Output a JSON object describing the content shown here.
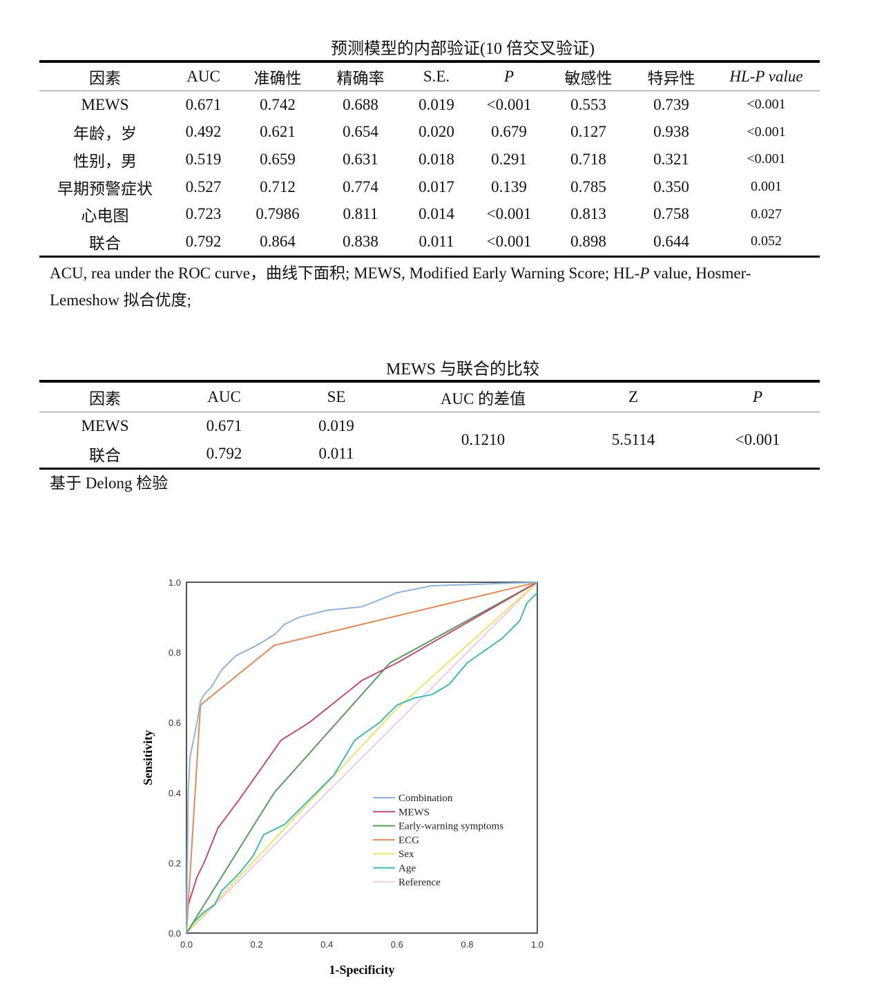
{
  "table1": {
    "title": "预测模型的内部验证(10 倍交叉验证)",
    "headers": [
      "因素",
      "AUC",
      "准确性",
      "精确率",
      "S.E.",
      "P",
      "敏感性",
      "特异性",
      "HL-P value"
    ],
    "rows": [
      [
        "MEWS",
        "0.671",
        "0.742",
        "0.688",
        "0.019",
        "<0.001",
        "0.553",
        "0.739",
        "<0.001"
      ],
      [
        "年龄，岁",
        "0.492",
        "0.621",
        "0.654",
        "0.020",
        "0.679",
        "0.127",
        "0.938",
        "<0.001"
      ],
      [
        "性别，男",
        "0.519",
        "0.659",
        "0.631",
        "0.018",
        "0.291",
        "0.718",
        "0.321",
        "<0.001"
      ],
      [
        "早期预警症状",
        "0.527",
        "0.712",
        "0.774",
        "0.017",
        "0.139",
        "0.785",
        "0.350",
        "0.001"
      ],
      [
        "心电图",
        "0.723",
        "0.7986",
        "0.811",
        "0.014",
        "<0.001",
        "0.813",
        "0.758",
        "0.027"
      ],
      [
        "联合",
        "0.792",
        "0.864",
        "0.838",
        "0.011",
        "<0.001",
        "0.898",
        "0.644",
        "0.052"
      ]
    ],
    "note_a": "ACU, rea under the ROC curve，曲线下面积; MEWS, Modified Early Warning Score; HL-",
    "note_p": "P",
    "note_b": " value, Hosmer-",
    "note_c": "Lemeshow 拟合优度;"
  },
  "table2": {
    "title": "MEWS 与联合的比较",
    "headers": [
      "因素",
      "AUC",
      "SE",
      "AUC 的差值",
      "Z",
      "P"
    ],
    "rows": [
      [
        "MEWS",
        "0.671",
        "0.019"
      ],
      [
        "联合",
        "0.792",
        "0.011"
      ]
    ],
    "diff": "0.1210",
    "z": "5.5114",
    "p": "<0.001",
    "note": "基于 Delong 检验"
  },
  "chart_data": {
    "type": "line",
    "xlabel": "1-Specificity",
    "ylabel": "Sensitivity",
    "xlim": [
      0,
      1
    ],
    "ylim": [
      0,
      1
    ],
    "xticks": [
      "0.0",
      "0.2",
      "0.4",
      "0.6",
      "0.8",
      "1.0"
    ],
    "yticks": [
      "0.0",
      "0.2",
      "0.4",
      "0.6",
      "0.8",
      "1.0"
    ],
    "legend_position": "bottom-right",
    "grid": false,
    "series": [
      {
        "name": "Combination",
        "color": "#8fb4d9",
        "points": [
          [
            0,
            0
          ],
          [
            0.005,
            0.4
          ],
          [
            0.01,
            0.5
          ],
          [
            0.02,
            0.55
          ],
          [
            0.03,
            0.6
          ],
          [
            0.04,
            0.66
          ],
          [
            0.05,
            0.68
          ],
          [
            0.07,
            0.7
          ],
          [
            0.1,
            0.75
          ],
          [
            0.14,
            0.79
          ],
          [
            0.2,
            0.82
          ],
          [
            0.25,
            0.85
          ],
          [
            0.28,
            0.88
          ],
          [
            0.32,
            0.9
          ],
          [
            0.4,
            0.92
          ],
          [
            0.5,
            0.93
          ],
          [
            0.55,
            0.95
          ],
          [
            0.6,
            0.97
          ],
          [
            0.7,
            0.99
          ],
          [
            1,
            1
          ]
        ]
      },
      {
        "name": "MEWS",
        "color": "#c04a74",
        "points": [
          [
            0,
            0
          ],
          [
            0.005,
            0.08
          ],
          [
            0.03,
            0.16
          ],
          [
            0.05,
            0.2
          ],
          [
            0.09,
            0.3
          ],
          [
            0.15,
            0.38
          ],
          [
            0.27,
            0.55
          ],
          [
            0.35,
            0.6
          ],
          [
            0.5,
            0.72
          ],
          [
            0.6,
            0.77
          ],
          [
            1,
            1
          ]
        ]
      },
      {
        "name": "Early-warning symptoms",
        "color": "#5a9a5a",
        "points": [
          [
            0,
            0
          ],
          [
            0.25,
            0.4
          ],
          [
            0.58,
            0.77
          ],
          [
            1,
            1
          ]
        ]
      },
      {
        "name": "ECG",
        "color": "#e08a5a",
        "points": [
          [
            0,
            0
          ],
          [
            0.04,
            0.65
          ],
          [
            0.25,
            0.82
          ],
          [
            1,
            1
          ]
        ]
      },
      {
        "name": "Sex",
        "color": "#e6e66a",
        "points": [
          [
            0,
            0
          ],
          [
            0.6,
            0.64
          ],
          [
            1,
            1
          ]
        ]
      },
      {
        "name": "Age",
        "color": "#40b8b0",
        "points": [
          [
            0,
            0
          ],
          [
            0.02,
            0.03
          ],
          [
            0.05,
            0.06
          ],
          [
            0.08,
            0.08
          ],
          [
            0.1,
            0.12
          ],
          [
            0.15,
            0.17
          ],
          [
            0.19,
            0.22
          ],
          [
            0.22,
            0.28
          ],
          [
            0.28,
            0.31
          ],
          [
            0.35,
            0.38
          ],
          [
            0.42,
            0.45
          ],
          [
            0.48,
            0.55
          ],
          [
            0.55,
            0.6
          ],
          [
            0.6,
            0.65
          ],
          [
            0.65,
            0.67
          ],
          [
            0.7,
            0.68
          ],
          [
            0.75,
            0.71
          ],
          [
            0.8,
            0.77
          ],
          [
            0.9,
            0.84
          ],
          [
            0.95,
            0.89
          ],
          [
            0.97,
            0.94
          ],
          [
            1,
            0.97
          ]
        ]
      },
      {
        "name": "Reference",
        "color": "#f0c8e8",
        "points": [
          [
            0,
            0
          ],
          [
            1,
            1
          ]
        ]
      }
    ]
  }
}
